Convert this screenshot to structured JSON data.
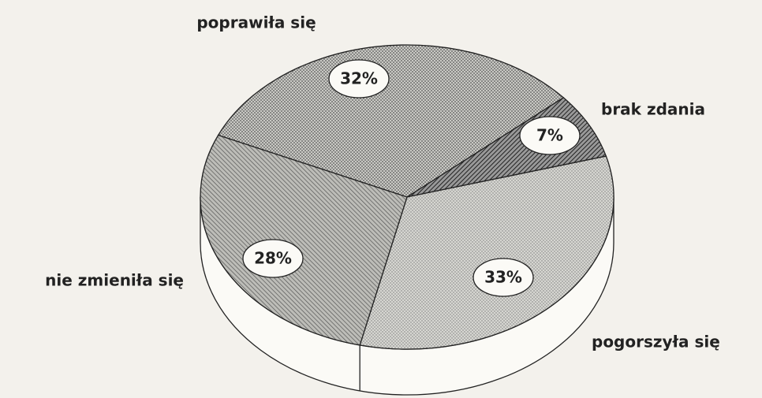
{
  "chart_data": {
    "type": "pie",
    "categories": [
      "poprawiła się",
      "brak zdania",
      "pogorszyła się",
      "nie zmieniła się"
    ],
    "values": [
      32,
      7,
      33,
      28
    ],
    "value_labels": [
      "32%",
      "7%",
      "33%",
      "28%"
    ],
    "colors": [
      "#c9c9c4",
      "#7a7a76",
      "#d6d6d1",
      "#bdbdb8"
    ]
  }
}
